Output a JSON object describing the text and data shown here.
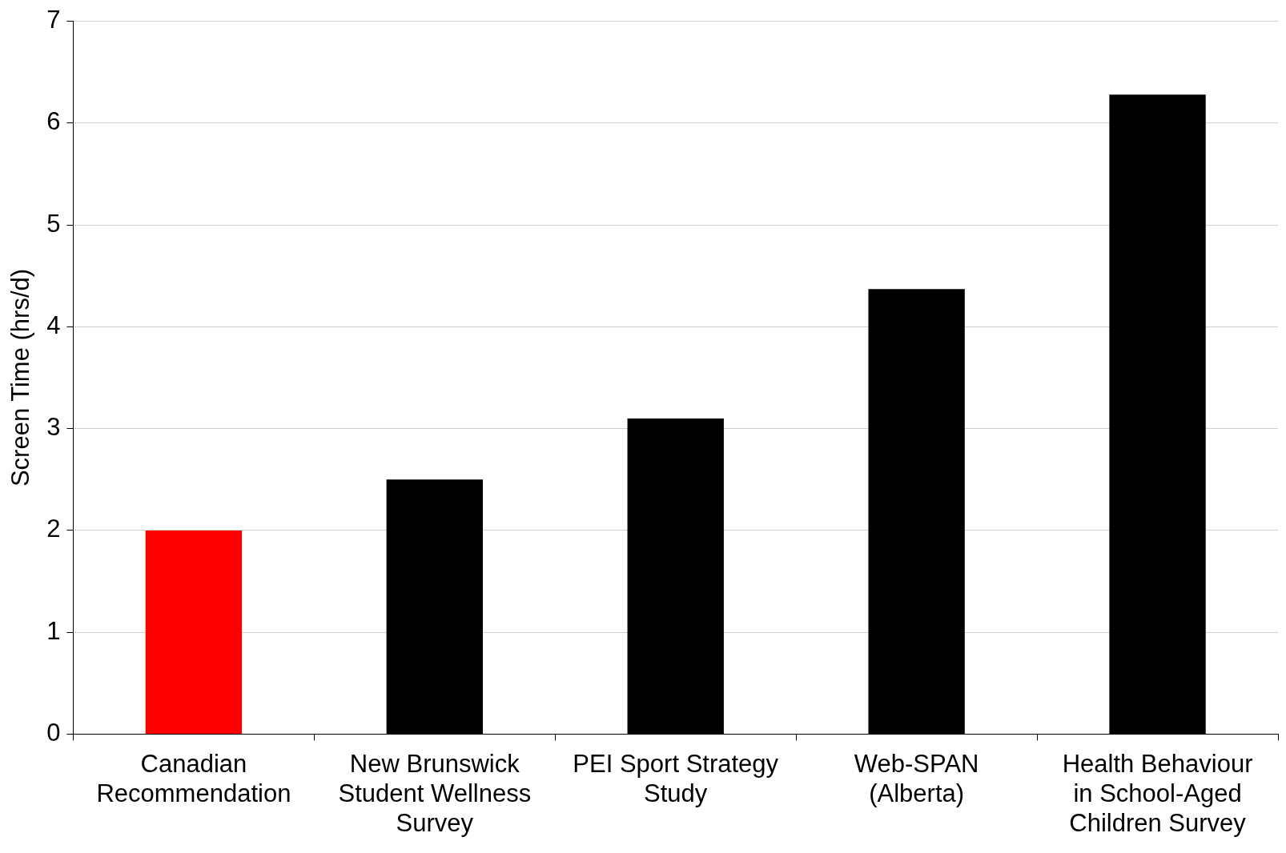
{
  "chart_data": {
    "type": "bar",
    "ylabel": "Screen Time (hrs/d)",
    "categories": [
      "Canadian\nRecommendation",
      "New Brunswick\nStudent Wellness\nSurvey",
      "PEI Sport Strategy\nStudy",
      "Web-SPAN\n(Alberta)",
      "Health Behaviour\nin School-Aged\nChildren Survey"
    ],
    "values": [
      2.0,
      2.5,
      3.1,
      4.37,
      6.28
    ],
    "colors": [
      "#ff0000",
      "#000000",
      "#000000",
      "#000000",
      "#000000"
    ],
    "ylim": [
      0,
      7
    ],
    "yticks": [
      0,
      1,
      2,
      3,
      4,
      5,
      6,
      7
    ],
    "grid": "y"
  }
}
